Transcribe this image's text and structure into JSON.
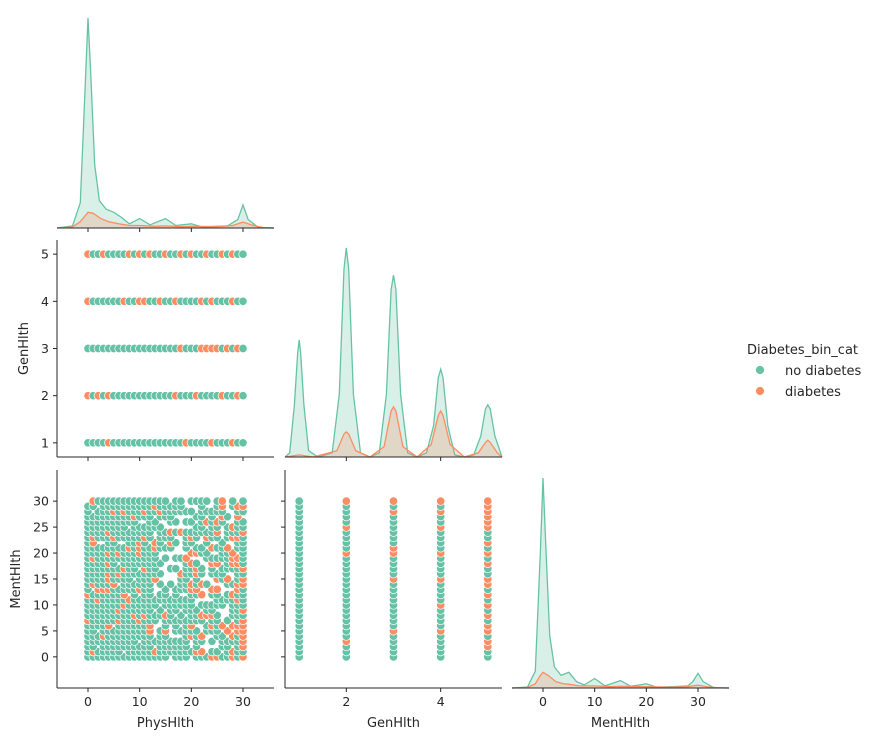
{
  "chart_data": {
    "type": "pairplot",
    "variables": [
      "PhysHlth",
      "GenHlth",
      "MentHlth"
    ],
    "hue": "Diabetes_bin_cat",
    "legend": {
      "title": "Diabetes_bin_cat",
      "placement": "right",
      "entries": [
        {
          "name": "no diabetes",
          "color": "#66c2a5"
        },
        {
          "name": "diabetes",
          "color": "#fc8d62"
        }
      ]
    },
    "axes": {
      "PhysHlth": {
        "range": [
          -6,
          36
        ],
        "ticks": [
          0,
          10,
          20,
          30
        ],
        "label": "PhysHlth"
      },
      "GenHlth": {
        "range": [
          0.7,
          5.3
        ],
        "ticks": [
          1,
          2,
          3,
          4,
          5
        ],
        "xticks": [
          2,
          4
        ],
        "label": "GenHlth"
      },
      "MentHlth": {
        "range": [
          -6,
          36
        ],
        "ticks": [
          0,
          5,
          10,
          15,
          20,
          25,
          30
        ],
        "xticks": [
          0,
          10,
          20,
          30
        ],
        "label": "MentHlth"
      }
    },
    "kde": {
      "PhysHlth": {
        "no diabetes": [
          [
            -6,
            0
          ],
          [
            -3,
            0.01
          ],
          [
            -1.5,
            0.12
          ],
          [
            -0.5,
            0.7
          ],
          [
            0,
            1
          ],
          [
            0.5,
            0.75
          ],
          [
            1.3,
            0.3
          ],
          [
            2.2,
            0.13
          ],
          [
            3.5,
            0.09
          ],
          [
            5,
            0.075
          ],
          [
            6.5,
            0.05
          ],
          [
            8,
            0.02
          ],
          [
            10,
            0.045
          ],
          [
            12,
            0.015
          ],
          [
            15,
            0.045
          ],
          [
            17,
            0.012
          ],
          [
            20,
            0.02
          ],
          [
            22,
            0.005
          ],
          [
            25,
            0.008
          ],
          [
            27,
            0.01
          ],
          [
            29,
            0.04
          ],
          [
            30,
            0.11
          ],
          [
            31,
            0.04
          ],
          [
            33,
            0.002
          ],
          [
            36,
            0
          ]
        ],
        "diabetes": [
          [
            -6,
            0
          ],
          [
            -3,
            0.005
          ],
          [
            -1.5,
            0.03
          ],
          [
            0,
            0.075
          ],
          [
            1,
            0.07
          ],
          [
            2.5,
            0.045
          ],
          [
            4,
            0.03
          ],
          [
            6,
            0.02
          ],
          [
            8,
            0.012
          ],
          [
            10,
            0.012
          ],
          [
            13,
            0.008
          ],
          [
            15,
            0.01
          ],
          [
            18,
            0.006
          ],
          [
            20,
            0.008
          ],
          [
            25,
            0.006
          ],
          [
            28,
            0.012
          ],
          [
            30,
            0.028
          ],
          [
            32,
            0.012
          ],
          [
            34,
            0.002
          ],
          [
            36,
            0
          ]
        ]
      },
      "GenHlth": {
        "no diabetes": [
          [
            0.7,
            0
          ],
          [
            0.8,
            0.02
          ],
          [
            0.9,
            0.25
          ],
          [
            0.97,
            0.5
          ],
          [
            1,
            0.56
          ],
          [
            1.03,
            0.5
          ],
          [
            1.1,
            0.25
          ],
          [
            1.2,
            0.03
          ],
          [
            1.4,
            0
          ],
          [
            1.7,
            0.02
          ],
          [
            1.85,
            0.3
          ],
          [
            1.95,
            0.9
          ],
          [
            2,
            1
          ],
          [
            2.05,
            0.9
          ],
          [
            2.15,
            0.3
          ],
          [
            2.3,
            0.02
          ],
          [
            2.5,
            0
          ],
          [
            2.7,
            0.02
          ],
          [
            2.85,
            0.3
          ],
          [
            2.95,
            0.8
          ],
          [
            3,
            0.87
          ],
          [
            3.05,
            0.8
          ],
          [
            3.15,
            0.3
          ],
          [
            3.3,
            0.02
          ],
          [
            3.5,
            0
          ],
          [
            3.7,
            0.02
          ],
          [
            3.85,
            0.15
          ],
          [
            3.95,
            0.38
          ],
          [
            4,
            0.42
          ],
          [
            4.05,
            0.38
          ],
          [
            4.15,
            0.15
          ],
          [
            4.3,
            0.01
          ],
          [
            4.5,
            0
          ],
          [
            4.7,
            0.01
          ],
          [
            4.85,
            0.1
          ],
          [
            4.95,
            0.23
          ],
          [
            5,
            0.25
          ],
          [
            5.05,
            0.23
          ],
          [
            5.15,
            0.1
          ],
          [
            5.3,
            0
          ]
        ],
        "diabetes": [
          [
            0.7,
            0
          ],
          [
            1,
            0.01
          ],
          [
            1.3,
            0
          ],
          [
            1.8,
            0.03
          ],
          [
            1.95,
            0.11
          ],
          [
            2,
            0.12
          ],
          [
            2.05,
            0.11
          ],
          [
            2.2,
            0.03
          ],
          [
            2.5,
            0
          ],
          [
            2.8,
            0.05
          ],
          [
            2.95,
            0.22
          ],
          [
            3,
            0.24
          ],
          [
            3.05,
            0.22
          ],
          [
            3.2,
            0.05
          ],
          [
            3.5,
            0
          ],
          [
            3.8,
            0.06
          ],
          [
            3.95,
            0.2
          ],
          [
            4,
            0.22
          ],
          [
            4.05,
            0.2
          ],
          [
            4.2,
            0.06
          ],
          [
            4.5,
            0
          ],
          [
            4.8,
            0.02
          ],
          [
            4.95,
            0.07
          ],
          [
            5,
            0.08
          ],
          [
            5.05,
            0.07
          ],
          [
            5.2,
            0.02
          ],
          [
            5.3,
            0
          ]
        ]
      },
      "MentHlth": {
        "no diabetes": [
          [
            -6,
            0
          ],
          [
            -3,
            0.005
          ],
          [
            -1.5,
            0.08
          ],
          [
            -0.5,
            0.65
          ],
          [
            0,
            1
          ],
          [
            0.5,
            0.7
          ],
          [
            1.3,
            0.25
          ],
          [
            2.2,
            0.1
          ],
          [
            3.5,
            0.06
          ],
          [
            5,
            0.075
          ],
          [
            6.5,
            0.03
          ],
          [
            8,
            0.015
          ],
          [
            10,
            0.045
          ],
          [
            12,
            0.01
          ],
          [
            15,
            0.035
          ],
          [
            17,
            0.008
          ],
          [
            20,
            0.02
          ],
          [
            22,
            0.004
          ],
          [
            25,
            0.006
          ],
          [
            28,
            0.01
          ],
          [
            29,
            0.03
          ],
          [
            30,
            0.07
          ],
          [
            31,
            0.03
          ],
          [
            33,
            0.002
          ],
          [
            36,
            0
          ]
        ],
        "diabetes": [
          [
            -6,
            0
          ],
          [
            -3,
            0.003
          ],
          [
            -1.5,
            0.02
          ],
          [
            -0.5,
            0.06
          ],
          [
            0,
            0.075
          ],
          [
            1,
            0.06
          ],
          [
            2.5,
            0.03
          ],
          [
            4,
            0.02
          ],
          [
            5,
            0.018
          ],
          [
            7,
            0.01
          ],
          [
            10,
            0.01
          ],
          [
            13,
            0.006
          ],
          [
            15,
            0.008
          ],
          [
            20,
            0.006
          ],
          [
            25,
            0.004
          ],
          [
            28,
            0.006
          ],
          [
            30,
            0.014
          ],
          [
            32,
            0.005
          ],
          [
            34,
            0.001
          ],
          [
            36,
            0
          ]
        ]
      }
    },
    "scatter": {
      "GenHlth_vs_PhysHlth": {
        "x_values": "integers 0-30",
        "y_levels": [
          1,
          2,
          3,
          4,
          5
        ],
        "diabetes_points": [
          [
            0,
            5
          ],
          [
            3,
            5
          ],
          [
            8,
            5
          ],
          [
            10,
            5
          ],
          [
            12,
            5
          ],
          [
            15,
            5
          ],
          [
            18,
            5
          ],
          [
            20,
            5
          ],
          [
            23,
            5
          ],
          [
            26,
            5
          ],
          [
            28,
            5
          ],
          [
            0,
            4
          ],
          [
            7,
            4
          ],
          [
            10,
            4
          ],
          [
            11,
            4
          ],
          [
            14,
            4
          ],
          [
            17,
            4
          ],
          [
            22,
            4
          ],
          [
            24,
            4
          ],
          [
            28,
            4
          ],
          [
            18,
            3
          ],
          [
            22,
            3
          ],
          [
            23,
            3
          ],
          [
            24,
            3
          ],
          [
            25,
            3
          ],
          [
            27,
            3
          ],
          [
            29,
            3
          ],
          [
            0,
            2
          ],
          [
            2,
            2
          ],
          [
            4,
            2
          ],
          [
            17,
            2
          ],
          [
            21,
            2
          ],
          [
            26,
            2
          ],
          [
            29,
            2
          ],
          [
            4,
            1
          ],
          [
            19,
            1
          ],
          [
            24,
            1
          ],
          [
            28,
            1
          ]
        ]
      },
      "MentHlth_vs_PhysHlth": {
        "x_values": "integers 0-30",
        "y_values": "integers 0-30",
        "pattern": "dense grid; mostly no diabetes with scattered diabetes points and gaps"
      },
      "MentHlth_vs_GenHlth": {
        "x_levels": [
          1,
          2,
          3,
          4,
          5
        ],
        "y_values": "integers 0-30",
        "diabetes_points": [
          [
            2,
            30
          ],
          [
            2,
            25
          ],
          [
            2,
            20
          ],
          [
            2,
            3
          ],
          [
            3,
            30
          ],
          [
            3,
            28
          ],
          [
            3,
            21
          ],
          [
            3,
            20
          ],
          [
            3,
            15
          ],
          [
            3,
            5
          ],
          [
            4,
            30
          ],
          [
            4,
            28
          ],
          [
            4,
            25
          ],
          [
            4,
            20
          ],
          [
            4,
            15
          ],
          [
            4,
            10
          ],
          [
            4,
            5
          ],
          [
            5,
            30
          ],
          [
            5,
            29
          ],
          [
            5,
            28
          ],
          [
            5,
            27
          ],
          [
            5,
            26
          ],
          [
            5,
            25
          ],
          [
            5,
            22
          ],
          [
            5,
            20
          ],
          [
            5,
            18
          ],
          [
            5,
            15
          ],
          [
            5,
            14
          ],
          [
            5,
            12
          ],
          [
            5,
            10
          ],
          [
            5,
            8
          ],
          [
            5,
            6
          ],
          [
            5,
            5
          ],
          [
            5,
            3
          ],
          [
            5,
            2
          ]
        ]
      }
    }
  }
}
